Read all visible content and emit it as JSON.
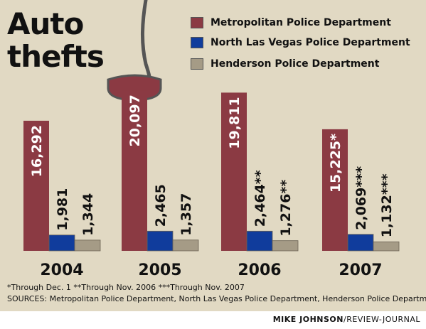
{
  "title": {
    "line1": "Auto",
    "line2": "thefts"
  },
  "legend": [
    {
      "label": "Metropolitan Police Department",
      "color": "#8b3a43"
    },
    {
      "label": "North Las Vegas Police Department",
      "color": "#103c9c"
    },
    {
      "label": "Henderson Police Department",
      "color": "#a59b86"
    }
  ],
  "chart_data": {
    "type": "bar",
    "title": "Auto thefts",
    "categories": [
      "2004",
      "2005",
      "2006",
      "2007"
    ],
    "series": [
      {
        "name": "Metropolitan Police Department",
        "values": [
          16292,
          20097,
          19811,
          15225
        ],
        "labels": [
          "16,292",
          "20,097",
          "19,811",
          "15,225*"
        ]
      },
      {
        "name": "North Las Vegas Police Department",
        "values": [
          1981,
          2465,
          2464,
          2069
        ],
        "labels": [
          "1,981",
          "2,465",
          "2,464**",
          "2,069***"
        ]
      },
      {
        "name": "Henderson Police Department",
        "values": [
          1344,
          1357,
          1276,
          1132
        ],
        "labels": [
          "1,344",
          "1,357",
          "1,276**",
          "1,132***"
        ]
      }
    ],
    "xlabel": "",
    "ylabel": "",
    "ylim": [
      0,
      21000
    ],
    "grid": false,
    "legend_position": "top-right"
  },
  "footnotes": "*Through Dec. 1     **Through Nov. 2006     ***Through Nov. 2007",
  "sources": "SOURCES: Metropolitan Police Department, North Las Vegas Police Department, Henderson Police Department",
  "credit": {
    "name": "MIKE JOHNSON",
    "outlet": "/REVIEW-JOURNAL"
  },
  "colors": {
    "background": "#e1d9c3",
    "metro_bar": "#8b3a43",
    "nlv_bar": "#103c9c",
    "henderson_bar": "#a59b86"
  }
}
